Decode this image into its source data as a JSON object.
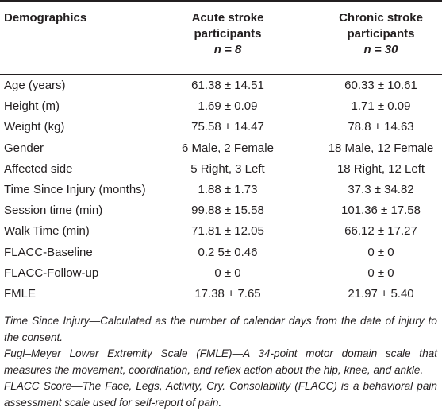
{
  "header": {
    "demographics": "Demographics",
    "acute_line1": "Acute stroke",
    "acute_line2": "participants",
    "acute_n": "n = 8",
    "chronic_line1": "Chronic stroke",
    "chronic_line2": "participants",
    "chronic_n": "n = 30"
  },
  "rows": [
    {
      "label": "Age (years)",
      "acute": "61.38 ± 14.51",
      "chronic": "60.33 ± 10.61"
    },
    {
      "label": "Height (m)",
      "acute": "1.69 ± 0.09",
      "chronic": "1.71 ± 0.09"
    },
    {
      "label": "Weight (kg)",
      "acute": "75.58 ± 14.47",
      "chronic": "78.8 ± 14.63"
    },
    {
      "label": "Gender",
      "acute": "6 Male, 2 Female",
      "chronic": "18 Male, 12 Female"
    },
    {
      "label": "Affected side",
      "acute": "5 Right, 3 Left",
      "chronic": "18 Right, 12 Left"
    },
    {
      "label": "Time Since Injury (months)",
      "acute": "1.88 ± 1.73",
      "chronic": "37.3 ± 34.82"
    },
    {
      "label": "Session time (min)",
      "acute": "99.88 ± 15.58",
      "chronic": "101.36 ± 17.58"
    },
    {
      "label": "Walk Time (min)",
      "acute": "71.81 ± 12.05",
      "chronic": "66.12 ± 17.27"
    },
    {
      "label": "FLACC-Baseline",
      "acute": "0.2 5± 0.46",
      "chronic": "0 ± 0"
    },
    {
      "label": "FLACC-Follow-up",
      "acute": "0 ± 0",
      "chronic": "0 ± 0"
    },
    {
      "label": "FMLE",
      "acute": "17.38 ± 7.65",
      "chronic": "21.97 ± 5.40"
    }
  ],
  "notes": {
    "note1": "Time Since Injury—Calculated as the number of calendar days from the date of injury to the consent.",
    "note2": "Fugl–Meyer Lower Extremity Scale (FMLE)—A 34-point motor domain scale that measures the movement, coordination, and reflex action about the hip, knee, and ankle.",
    "note3": "FLACC Score—The Face, Legs, Activity, Cry. Consolability (FLACC) is a behavioral pain assessment scale used for self-report of pain."
  }
}
